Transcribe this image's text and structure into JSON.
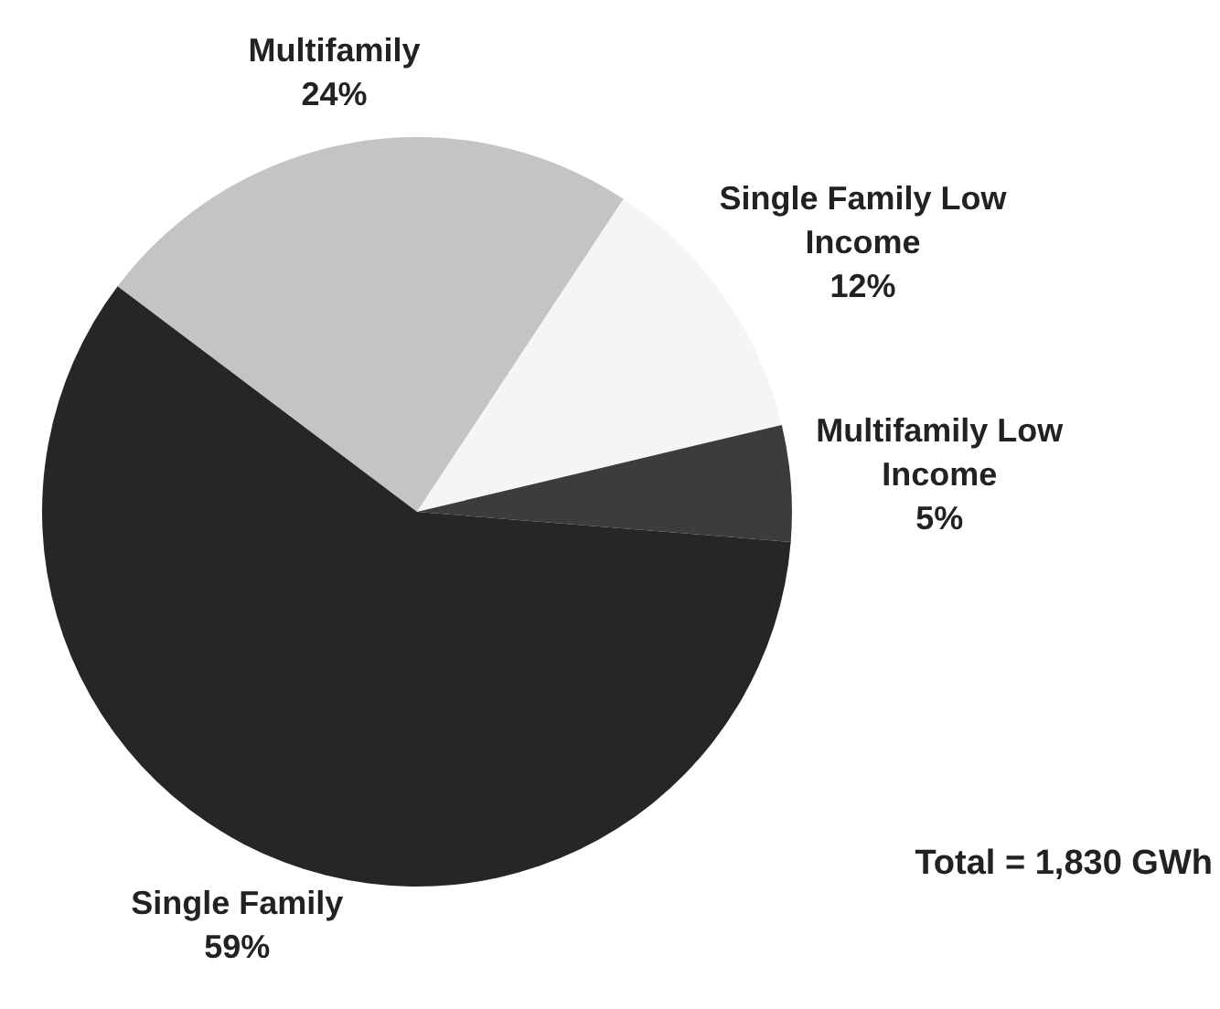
{
  "chart_data": {
    "type": "pie",
    "categories": [
      "Multifamily",
      "Single Family Low Income",
      "Multifamily Low Income",
      "Single Family"
    ],
    "values": [
      24,
      12,
      5,
      59
    ],
    "value_labels": [
      "24%",
      "12%",
      "5%",
      "59%"
    ],
    "colors": [
      "#c4c4c4",
      "#f5f5f5",
      "#3c3c3c",
      "#262626"
    ],
    "legend": false,
    "annotations": [
      "Total = 1,830 GWh"
    ]
  }
}
